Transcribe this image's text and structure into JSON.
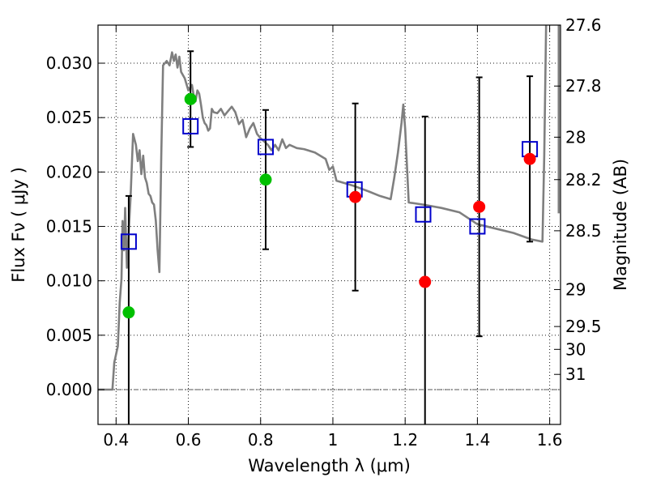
{
  "chart_data": {
    "type": "scatter",
    "title": "",
    "xlabel": "Wavelength  λ (μm)",
    "ylabel": "Flux  Fν  ( μJy )",
    "ylabel_right": "Magnitude (AB)",
    "xlim": [
      0.35,
      1.63
    ],
    "ylim": [
      -0.0032,
      0.0335
    ],
    "grid": true,
    "x_ticks": [
      0.4,
      0.6,
      0.8,
      1.0,
      1.2,
      1.4,
      1.6
    ],
    "x_tick_labels": [
      "0.4",
      "0.6",
      "0.8",
      "1",
      "1.2",
      "1.4",
      "1.6"
    ],
    "y_ticks": [
      0.0,
      0.005,
      0.01,
      0.015,
      0.02,
      0.025,
      0.03
    ],
    "y_tick_labels": [
      "0.000",
      "0.005",
      "0.010",
      "0.015",
      "0.020",
      "0.025",
      "0.030"
    ],
    "right_ticks": [
      {
        "label": "27.6",
        "flux": 0.0335
      },
      {
        "label": "27.8",
        "flux": 0.0279
      },
      {
        "label": "28",
        "flux": 0.0232
      },
      {
        "label": "28.2",
        "flux": 0.0193
      },
      {
        "label": "28.5",
        "flux": 0.0146
      },
      {
        "label": "29",
        "flux": 0.0092
      },
      {
        "label": "29.5",
        "flux": 0.0058
      },
      {
        "label": "30",
        "flux": 0.0037
      },
      {
        "label": "31",
        "flux": 0.0014
      }
    ],
    "colors": {
      "template": "#7f7f7f",
      "model": "#0000cc",
      "green_points": "#00c000",
      "red_points": "#ff0000",
      "errorbar": "#000000",
      "zero_line": "#555555"
    },
    "series": [
      {
        "kind": "model_photometry",
        "marker": "open-square",
        "points": [
          {
            "x": 0.435,
            "y": 0.0136
          },
          {
            "x": 0.606,
            "y": 0.0242
          },
          {
            "x": 0.814,
            "y": 0.0223
          },
          {
            "x": 1.06,
            "y": 0.0184
          },
          {
            "x": 1.25,
            "y": 0.0161
          },
          {
            "x": 1.4,
            "y": 0.015
          },
          {
            "x": 1.545,
            "y": 0.0221
          }
        ]
      },
      {
        "kind": "observed_green",
        "marker": "filled-circle",
        "points": [
          {
            "x": 0.435,
            "y": 0.0071,
            "err": 0.0107
          },
          {
            "x": 0.606,
            "y": 0.0267,
            "err": 0.0044
          },
          {
            "x": 0.814,
            "y": 0.0193,
            "err": 0.0064
          }
        ]
      },
      {
        "kind": "observed_red",
        "marker": "filled-circle",
        "points": [
          {
            "x": 1.062,
            "y": 0.0177,
            "err": 0.0086
          },
          {
            "x": 1.255,
            "y": 0.0099,
            "err": 0.0152
          },
          {
            "x": 1.405,
            "y": 0.0168,
            "err": 0.0119
          },
          {
            "x": 1.545,
            "y": 0.0212,
            "err": 0.0076
          }
        ]
      },
      {
        "kind": "template_spectrum",
        "points": [
          [
            0.35,
            0.0
          ],
          [
            0.39,
            0.0
          ],
          [
            0.395,
            0.0025
          ],
          [
            0.405,
            0.004
          ],
          [
            0.41,
            0.008
          ],
          [
            0.415,
            0.0102
          ],
          [
            0.418,
            0.0155
          ],
          [
            0.422,
            0.0128
          ],
          [
            0.425,
            0.0167
          ],
          [
            0.43,
            0.0112
          ],
          [
            0.435,
            0.0145
          ],
          [
            0.44,
            0.0175
          ],
          [
            0.447,
            0.0235
          ],
          [
            0.455,
            0.0225
          ],
          [
            0.46,
            0.021
          ],
          [
            0.465,
            0.022
          ],
          [
            0.47,
            0.0198
          ],
          [
            0.475,
            0.0215
          ],
          [
            0.48,
            0.0195
          ],
          [
            0.485,
            0.019
          ],
          [
            0.49,
            0.018
          ],
          [
            0.495,
            0.0178
          ],
          [
            0.5,
            0.0172
          ],
          [
            0.505,
            0.017
          ],
          [
            0.51,
            0.0155
          ],
          [
            0.515,
            0.0128
          ],
          [
            0.52,
            0.0108
          ],
          [
            0.525,
            0.0215
          ],
          [
            0.53,
            0.0298
          ],
          [
            0.54,
            0.0302
          ],
          [
            0.548,
            0.0298
          ],
          [
            0.555,
            0.031
          ],
          [
            0.56,
            0.0302
          ],
          [
            0.565,
            0.0308
          ],
          [
            0.57,
            0.0296
          ],
          [
            0.575,
            0.0306
          ],
          [
            0.58,
            0.0292
          ],
          [
            0.59,
            0.0286
          ],
          [
            0.6,
            0.0275
          ],
          [
            0.61,
            0.028
          ],
          [
            0.615,
            0.027
          ],
          [
            0.62,
            0.0265
          ],
          [
            0.625,
            0.0275
          ],
          [
            0.63,
            0.0272
          ],
          [
            0.635,
            0.0262
          ],
          [
            0.64,
            0.025
          ],
          [
            0.645,
            0.0245
          ],
          [
            0.65,
            0.0243
          ],
          [
            0.655,
            0.0238
          ],
          [
            0.66,
            0.024
          ],
          [
            0.665,
            0.0258
          ],
          [
            0.67,
            0.0255
          ],
          [
            0.68,
            0.0254
          ],
          [
            0.69,
            0.0258
          ],
          [
            0.7,
            0.0252
          ],
          [
            0.71,
            0.0256
          ],
          [
            0.72,
            0.026
          ],
          [
            0.73,
            0.0255
          ],
          [
            0.74,
            0.0244
          ],
          [
            0.75,
            0.0248
          ],
          [
            0.76,
            0.0232
          ],
          [
            0.77,
            0.024
          ],
          [
            0.78,
            0.0245
          ],
          [
            0.79,
            0.0235
          ],
          [
            0.8,
            0.0231
          ],
          [
            0.81,
            0.0228
          ],
          [
            0.82,
            0.0225
          ],
          [
            0.83,
            0.022
          ],
          [
            0.84,
            0.0225
          ],
          [
            0.85,
            0.022
          ],
          [
            0.86,
            0.023
          ],
          [
            0.87,
            0.0222
          ],
          [
            0.88,
            0.0225
          ],
          [
            0.9,
            0.0222
          ],
          [
            0.92,
            0.0221
          ],
          [
            0.95,
            0.0218
          ],
          [
            0.98,
            0.0212
          ],
          [
            0.99,
            0.0202
          ],
          [
            1.0,
            0.0205
          ],
          [
            1.01,
            0.0192
          ],
          [
            1.03,
            0.019
          ],
          [
            1.06,
            0.0187
          ],
          [
            1.1,
            0.0182
          ],
          [
            1.13,
            0.0178
          ],
          [
            1.16,
            0.0175
          ],
          [
            1.17,
            0.0195
          ],
          [
            1.18,
            0.0218
          ],
          [
            1.19,
            0.0245
          ],
          [
            1.195,
            0.0262
          ],
          [
            1.2,
            0.024
          ],
          [
            1.21,
            0.0172
          ],
          [
            1.25,
            0.017
          ],
          [
            1.3,
            0.0167
          ],
          [
            1.35,
            0.0163
          ],
          [
            1.4,
            0.0152
          ],
          [
            1.45,
            0.0148
          ],
          [
            1.5,
            0.0144
          ],
          [
            1.55,
            0.0138
          ],
          [
            1.58,
            0.0136
          ],
          [
            1.585,
            0.0215
          ],
          [
            1.59,
            0.0335
          ]
        ]
      },
      {
        "kind": "template_spectrum_edge",
        "points": [
          [
            1.625,
            0.0335
          ],
          [
            1.625,
            0.0162
          ]
        ]
      }
    ]
  }
}
